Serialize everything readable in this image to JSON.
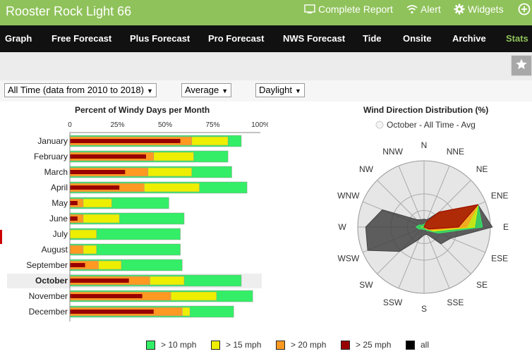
{
  "app": {
    "title": "Rooster Rock Light 66",
    "top_links": [
      {
        "label": "Complete Report",
        "icon": "report-icon"
      },
      {
        "label": "Alert",
        "icon": "wifi-alert-icon"
      },
      {
        "label": "Widgets",
        "icon": "gear-icon"
      }
    ],
    "add_icon": "plus-circle-icon"
  },
  "nav": {
    "items": [
      {
        "label": "Graph"
      },
      {
        "label": "Free Forecast"
      },
      {
        "label": "Plus Forecast"
      },
      {
        "label": "Pro Forecast"
      },
      {
        "label": "NWS Forecast"
      },
      {
        "label": "Tide"
      },
      {
        "label": "Onsite"
      },
      {
        "label": "Archive"
      },
      {
        "label": "Stats",
        "active": true
      }
    ]
  },
  "toolbar": {
    "favorite_icon": "star-icon"
  },
  "filters": {
    "period": "All Time (data from 2010 to 2018)",
    "stat": "Average",
    "time": "Daylight"
  },
  "chart_data": [
    {
      "type": "bar",
      "title": "Percent of Windy Days per Month",
      "orientation": "horizontal",
      "x_tick_labels": [
        "0",
        "25%",
        "50%",
        "75%",
        "100%"
      ],
      "xlim": [
        0,
        100
      ],
      "categories": [
        "January",
        "February",
        "March",
        "April",
        "May",
        "June",
        "July",
        "August",
        "September",
        "October",
        "November",
        "December"
      ],
      "highlighted_category": "October",
      "series": [
        {
          "name": "> 10 mph",
          "color": "#33ee66",
          "values": [
            90,
            83,
            85,
            93,
            52,
            60,
            58,
            58,
            59,
            90,
            96,
            86
          ]
        },
        {
          "name": "> 15 mph",
          "color": "#eeee00",
          "values": [
            83,
            65,
            64,
            68,
            22,
            26,
            14,
            14,
            27,
            60,
            77,
            63
          ]
        },
        {
          "name": "> 20 mph",
          "color": "#ff9922",
          "values": [
            64,
            44,
            41,
            39,
            7,
            7,
            0,
            7,
            15,
            42,
            53,
            59
          ]
        },
        {
          "name": "> 25 mph",
          "color": "#990000",
          "values": [
            58,
            40,
            29,
            26,
            4,
            4,
            0,
            0,
            8,
            31,
            38,
            44
          ]
        }
      ],
      "legend": {
        "placement": "bottom",
        "items": [
          {
            "label": "> 10 mph",
            "color": "#33ee66"
          },
          {
            "label": "> 15 mph",
            "color": "#eeee00"
          },
          {
            "label": "> 20 mph",
            "color": "#ff9922"
          },
          {
            "label": "> 25 mph",
            "color": "#990000"
          },
          {
            "label": "all",
            "color": "#000000"
          }
        ]
      }
    },
    {
      "type": "radar",
      "title": "Wind Direction Distribution (%)",
      "subtitle": "October - All Time - Avg",
      "directions": [
        "N",
        "NNE",
        "NE",
        "ENE",
        "E",
        "ESE",
        "SE",
        "SSE",
        "S",
        "SSW",
        "SW",
        "WSW",
        "W",
        "WNW",
        "NW",
        "NNW"
      ],
      "series": [
        {
          "name": "all",
          "color": "#444444",
          "values": [
            0.3,
            0.3,
            0.8,
            2.2,
            2.6,
            1.1,
            0.9,
            0.3,
            0.3,
            0.5,
            1.3,
            2.3,
            2.2,
            1.7,
            0.4,
            0.3
          ]
        },
        {
          "name": "> 10 mph",
          "color": "#33ee66",
          "values": [
            0.1,
            0.2,
            0.8,
            2.2,
            2.2,
            0.6,
            0.2,
            0.1,
            0.1,
            0.1,
            0.1,
            0.2,
            0.3,
            0.2,
            0.1,
            0.1
          ]
        },
        {
          "name": "> 15 mph",
          "color": "#eeee00",
          "values": [
            0,
            0.2,
            0.8,
            2.2,
            1.9,
            0.4,
            0.1,
            0,
            0,
            0,
            0,
            0,
            0.1,
            0,
            0,
            0
          ]
        },
        {
          "name": "> 20 mph",
          "color": "#ff9922",
          "values": [
            0,
            0.2,
            0.8,
            2.2,
            1.6,
            0.3,
            0.1,
            0,
            0,
            0,
            0,
            0,
            0,
            0,
            0,
            0
          ]
        },
        {
          "name": "> 25 mph",
          "color": "#990000",
          "values": [
            0,
            0.2,
            0.8,
            2.2,
            1.3,
            0.2,
            0,
            0,
            0,
            0,
            0,
            0,
            0,
            0,
            0,
            0
          ]
        }
      ],
      "rmax": 2.5
    }
  ]
}
